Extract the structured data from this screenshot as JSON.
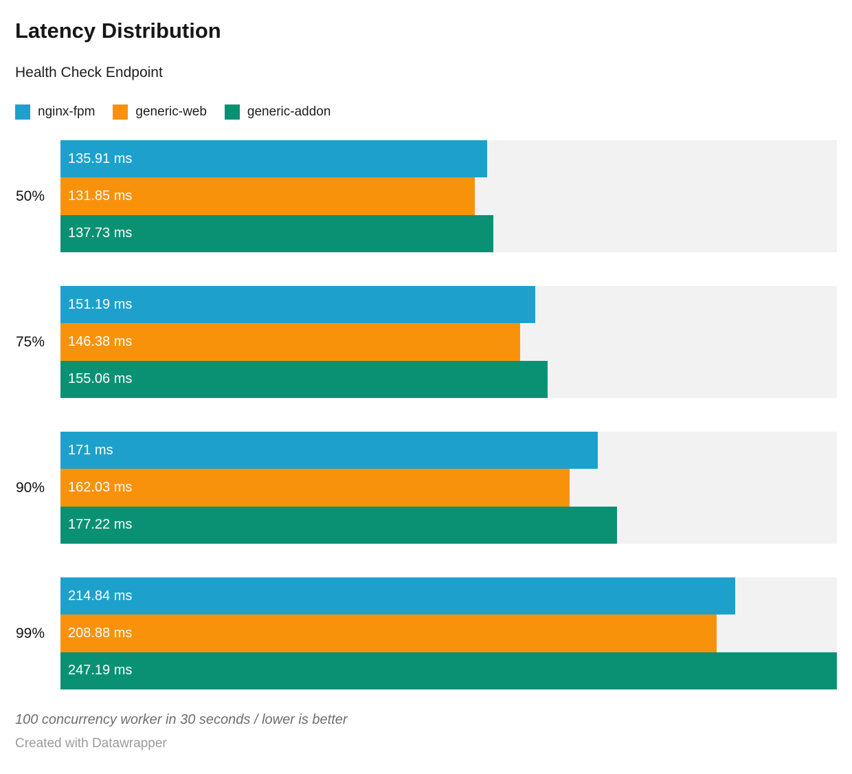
{
  "header": {
    "title": "Latency Distribution",
    "subtitle": "Health Check Endpoint"
  },
  "chart_data": {
    "type": "bar",
    "orientation": "horizontal",
    "title": "Latency Distribution",
    "subtitle": "Health Check Endpoint",
    "unit": "ms",
    "categories": [
      "50%",
      "75%",
      "90%",
      "99%"
    ],
    "series": [
      {
        "name": "nginx-fpm",
        "color": "#1DA1CC",
        "values": [
          135.91,
          151.19,
          171,
          214.84
        ],
        "labels": [
          "135.91 ms",
          "151.19 ms",
          "171 ms",
          "214.84 ms"
        ]
      },
      {
        "name": "generic-web",
        "color": "#F9920B",
        "values": [
          131.85,
          146.38,
          162.03,
          208.88
        ],
        "labels": [
          "131.85 ms",
          "146.38 ms",
          "162.03 ms",
          "208.88 ms"
        ]
      },
      {
        "name": "generic-addon",
        "color": "#0A9174",
        "values": [
          137.73,
          155.06,
          177.22,
          247.19
        ],
        "labels": [
          "137.73 ms",
          "155.06 ms",
          "177.22 ms",
          "247.19 ms"
        ]
      }
    ],
    "xlim": [
      0,
      247.19
    ],
    "grid": false,
    "legend_position": "top",
    "track_color": "#F2F2F2",
    "value_labels_inside_bars": true
  },
  "footer": {
    "footnote": "100 concurrency worker in 30 seconds / lower is better",
    "credit": "Created with Datawrapper"
  }
}
